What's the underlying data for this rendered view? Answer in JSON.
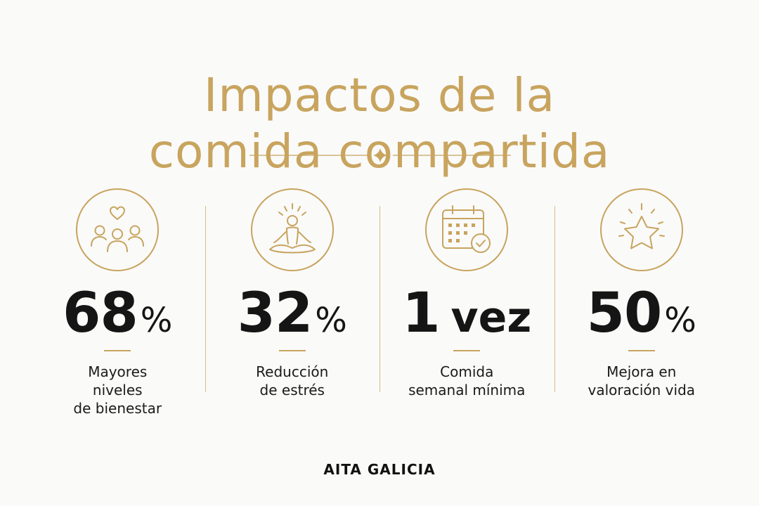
{
  "title": {
    "line1": "Impactos de la",
    "line2": "comida compartida"
  },
  "colors": {
    "accent": "#c8a45e",
    "text": "#151515",
    "background": "#fafaf9"
  },
  "stats": [
    {
      "icon": "people-heart-icon",
      "number": "68",
      "unit": "%",
      "label_lines": [
        "Mayores",
        "niveles",
        "de bienestar"
      ]
    },
    {
      "icon": "meditation-icon",
      "number": "32",
      "unit": "%",
      "label_lines": [
        "Reducción",
        "de estrés"
      ]
    },
    {
      "icon": "calendar-check-icon",
      "number": "1",
      "unit": "vez",
      "label_lines": [
        "Comida",
        "semanal mínima"
      ]
    },
    {
      "icon": "star-icon",
      "number": "50",
      "unit": "%",
      "label_lines": [
        "Mejora en",
        "valoración vida"
      ]
    }
  ],
  "brand": "AITA GALICIA"
}
